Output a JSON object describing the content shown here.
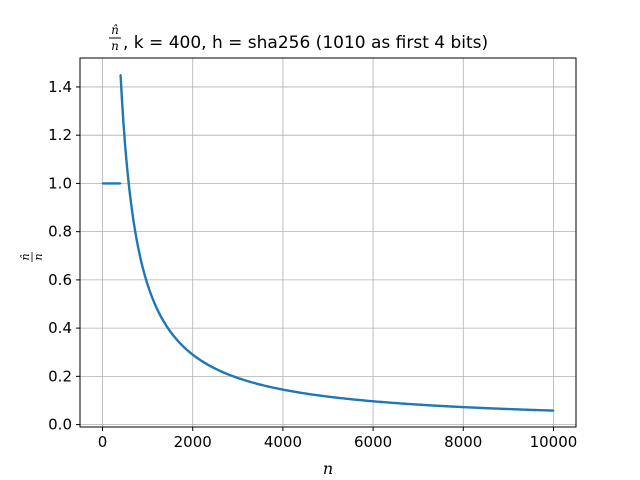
{
  "chart_data": {
    "type": "line",
    "title": {
      "prefix_num": "n̂",
      "prefix_den": "n",
      "text": ",  k = 400,  h = sha256 (1010 as first 4 bits)"
    },
    "xlabel": "n",
    "ylabel": {
      "num": "n̂",
      "den": "n"
    },
    "xlim": [
      -500,
      10500
    ],
    "ylim": [
      -0.01,
      1.52
    ],
    "xticks": [
      0,
      2000,
      4000,
      6000,
      8000,
      10000
    ],
    "xtick_labels": [
      "0",
      "2000",
      "4000",
      "6000",
      "8000",
      "10000"
    ],
    "yticks": [
      0.0,
      0.2,
      0.4,
      0.6,
      0.8,
      1.0,
      1.2,
      1.4
    ],
    "ytick_labels": [
      "0.0",
      "0.2",
      "0.4",
      "0.6",
      "0.8",
      "1.0",
      "1.2",
      "1.4"
    ],
    "grid": true,
    "series": [
      {
        "color": "#1f77b4",
        "segments": [
          {
            "formula": "ratio = 1",
            "x_range": [
              1,
              400
            ]
          },
          {
            "formula": "ratio = 580 / n",
            "x_range": [
              400,
              10000
            ]
          }
        ],
        "points": [
          [
            1,
            1.0
          ],
          [
            400,
            1.0
          ],
          [
            400,
            1.45
          ],
          [
            500,
            1.16
          ],
          [
            600,
            0.967
          ],
          [
            800,
            0.725
          ],
          [
            1000,
            0.58
          ],
          [
            1500,
            0.387
          ],
          [
            2000,
            0.29
          ],
          [
            3000,
            0.193
          ],
          [
            4000,
            0.145
          ],
          [
            5000,
            0.116
          ],
          [
            6000,
            0.097
          ],
          [
            8000,
            0.0725
          ],
          [
            10000,
            0.058
          ]
        ]
      }
    ]
  }
}
